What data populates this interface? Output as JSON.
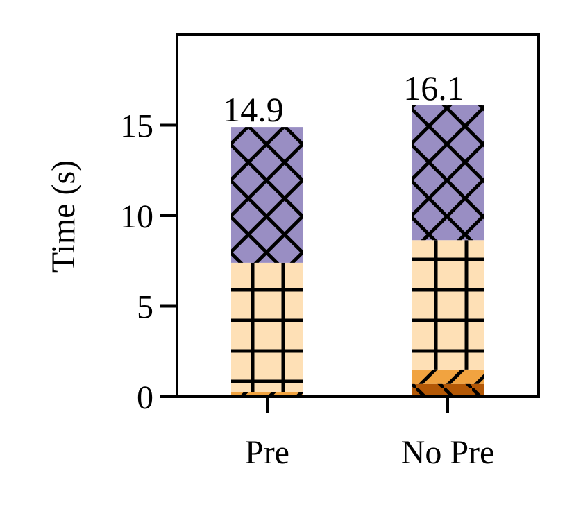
{
  "chart_data": {
    "type": "bar",
    "stacked": true,
    "categories": [
      "Pre",
      "No Pre"
    ],
    "ylabel": "Time (s)",
    "xlabel": "",
    "ylim": [
      0,
      20
    ],
    "yticks": [
      0,
      5,
      10,
      15
    ],
    "ytick_labels": [
      "0",
      "5",
      "10",
      "15"
    ],
    "grid": false,
    "legend": "none",
    "totals": [
      14.9,
      16.1
    ],
    "total_labels": [
      "14.9",
      "16.1"
    ],
    "series": [
      {
        "values": [
          0.05,
          0.7
        ],
        "color": "#B35806",
        "hatch": "diagonal-backslash"
      },
      {
        "values": [
          0.2,
          0.8
        ],
        "color": "#F1A340",
        "hatch": "diagonal-slash"
      },
      {
        "values": [
          7.15,
          7.15
        ],
        "color": "#FEE0B6",
        "hatch": "grid"
      },
      {
        "values": [
          7.5,
          7.45
        ],
        "color": "#998EC3",
        "hatch": "cross"
      }
    ]
  }
}
